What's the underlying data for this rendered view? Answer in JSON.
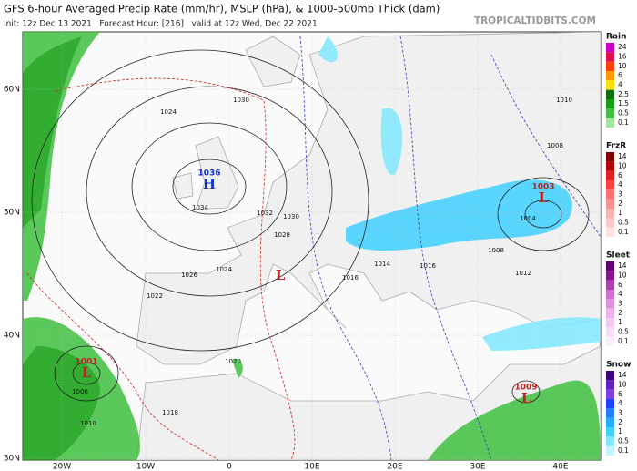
{
  "header": {
    "title": "GFS 6-hour Averaged Precip Rate (mm/hr), MSLP (hPa), & 1000-500mb Thick (dam)",
    "subtitle": "Init: 12z Dec 13 2021   Forecast Hour: [216]   valid at 12z Wed, Dec 22 2021",
    "credit": "TROPICALTIDBITS.COM"
  },
  "legend": [
    {
      "label": "Rain",
      "ticks": [
        "24",
        "16",
        "10",
        "6",
        "4",
        "2.5",
        "1.5",
        "0.5",
        "0.1"
      ],
      "colors": [
        "#c800c8",
        "#e01050",
        "#ff4000",
        "#ff9a00",
        "#ffe000",
        "#0a6e0a",
        "#10a010",
        "#40c040",
        "#a0e6a0"
      ]
    },
    {
      "label": "FrzR",
      "ticks": [
        "14",
        "10",
        "6",
        "4",
        "3",
        "2",
        "1",
        "0.5",
        "0.1"
      ],
      "colors": [
        "#800000",
        "#b00000",
        "#e02020",
        "#ff4040",
        "#ff7070",
        "#ff9090",
        "#ffb0b0",
        "#ffc8c8",
        "#ffe0e0"
      ]
    },
    {
      "label": "Sleet",
      "ticks": [
        "14",
        "10",
        "6",
        "4",
        "3",
        "2",
        "1",
        "0.5",
        "0.1"
      ],
      "colors": [
        "#600070",
        "#8a1090",
        "#b040b0",
        "#d070d0",
        "#e090e0",
        "#f0b0f0",
        "#f0c8f0",
        "#f8dcf8",
        "#fceefc"
      ]
    },
    {
      "label": "Snow",
      "ticks": [
        "14",
        "10",
        "6",
        "4",
        "3",
        "2",
        "1",
        "0.5",
        "0.1"
      ],
      "colors": [
        "#400080",
        "#6020c0",
        "#8040e0",
        "#2040ff",
        "#2080ff",
        "#20b0ff",
        "#40d0ff",
        "#80e8ff",
        "#c0f4ff"
      ]
    }
  ],
  "axes": {
    "lat": [
      "60N",
      "50N",
      "40N",
      "30N"
    ],
    "lon": [
      "20W",
      "10W",
      "0",
      "10E",
      "20E",
      "30E",
      "40E"
    ]
  },
  "pressure_centers": [
    {
      "type": "H",
      "value": "1036"
    },
    {
      "type": "L",
      "value": "1003"
    },
    {
      "type": "L",
      "value": "1001"
    },
    {
      "type": "L",
      "value": "1009"
    },
    {
      "type": "L"
    }
  ],
  "isobar_labels": [
    "1024",
    "1030",
    "1034",
    "1032",
    "1030",
    "1028",
    "1026",
    "1024",
    "1022",
    "1020",
    "1018",
    "1016",
    "1010",
    "1008",
    "1004",
    "1008",
    "1012",
    "1016",
    "1014",
    "1006",
    "1010"
  ]
}
